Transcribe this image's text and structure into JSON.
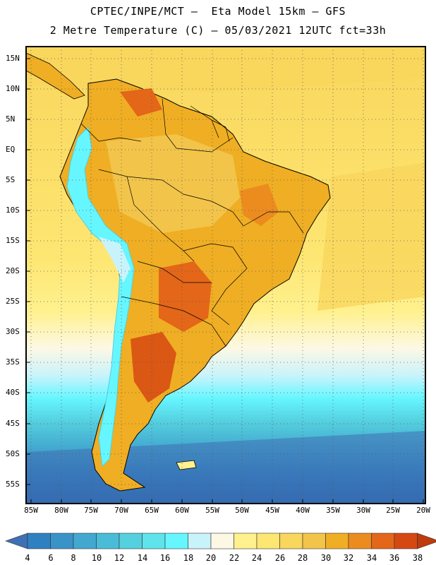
{
  "header": {
    "line1": "CPTEC/INPE/MCT –  Eta Model 15km – GFS",
    "line2": "2 Metre Temperature (C) – 05/03/2021 12UTC fct=33h"
  },
  "axes": {
    "lat_labels": [
      "15N",
      "10N",
      "5N",
      "EQ",
      "5S",
      "10S",
      "15S",
      "20S",
      "25S",
      "30S",
      "35S",
      "40S",
      "45S",
      "50S",
      "55S"
    ],
    "lon_labels": [
      "85W",
      "80W",
      "75W",
      "70W",
      "65W",
      "60W",
      "55W",
      "50W",
      "45W",
      "40W",
      "35W",
      "30W",
      "25W",
      "20W"
    ]
  },
  "colorbar": {
    "labels": [
      "4",
      "6",
      "8",
      "10",
      "12",
      "14",
      "16",
      "18",
      "20",
      "22",
      "24",
      "26",
      "28",
      "30",
      "32",
      "34",
      "36",
      "38"
    ],
    "colors": [
      "#3f70b5",
      "#2f80c0",
      "#3a93c8",
      "#43a8cf",
      "#49bdd8",
      "#55d0df",
      "#5ee4ea",
      "#66f6ff",
      "#c9f3fb",
      "#fdf8e4",
      "#fff18e",
      "#fde672",
      "#f9d65c",
      "#f2c44a",
      "#efae23",
      "#ec8c1f",
      "#e36619",
      "#d64812",
      "#bf3a0c"
    ]
  },
  "map": {
    "region": "South America",
    "field": "2 metre temperature"
  }
}
